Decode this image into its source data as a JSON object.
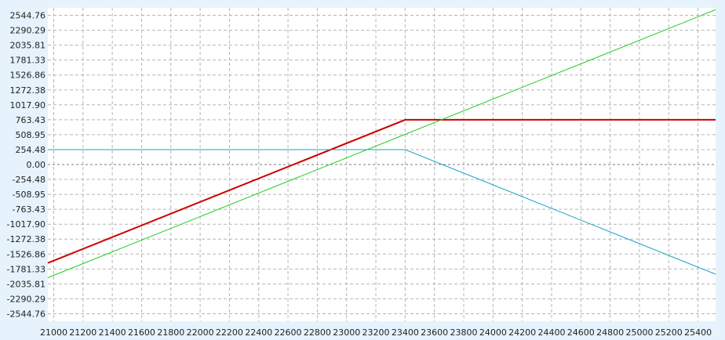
{
  "chart_data": {
    "type": "line",
    "title": "",
    "xlabel": "",
    "ylabel": "",
    "xlim": [
      20960,
      25520
    ],
    "ylim": [
      -2672,
      2672
    ],
    "grid": true,
    "x_ticks": [
      21000,
      21200,
      21400,
      21600,
      21800,
      22000,
      22200,
      22400,
      22600,
      22800,
      23000,
      23200,
      23400,
      23600,
      23800,
      24000,
      24200,
      24400,
      24600,
      24800,
      25000,
      25200,
      25400
    ],
    "x_tick_labels": [
      "21000",
      "21200",
      "21400",
      "21600",
      "21800",
      "22000",
      "22200",
      "22400",
      "22600",
      "22800",
      "23000",
      "23200",
      "23400",
      "23600",
      "23800",
      "24000",
      "24200",
      "24400",
      "24600",
      "24800",
      "25000",
      "25200",
      "25400"
    ],
    "y_ticks": [
      2544.76,
      2290.29,
      2035.81,
      1781.33,
      1526.86,
      1272.38,
      1017.9,
      763.43,
      508.95,
      254.48,
      0,
      -254.48,
      -508.95,
      -763.43,
      -1017.9,
      -1272.38,
      -1526.86,
      -1781.33,
      -2035.81,
      -2290.29,
      -2544.76
    ],
    "y_tick_labels": [
      "2544.76",
      "2290.29",
      "2035.81",
      "1781.33",
      "1526.86",
      "1272.38",
      "1017.90",
      "763.43",
      "508.95",
      "254.48",
      "0.00",
      "-254.48",
      "-508.95",
      "-763.43",
      "-1017.90",
      "-1272.38",
      "-1526.86",
      "-1781.33",
      "-2035.81",
      "-2290.29",
      "-2544.76"
    ],
    "series": [
      {
        "color": "#cc0000",
        "stroke_width": 2,
        "points": [
          [
            20960,
            -1680
          ],
          [
            23400,
            763.43
          ],
          [
            25520,
            763.43
          ]
        ]
      },
      {
        "color": "#22cc22",
        "stroke_width": 1,
        "points": [
          [
            20960,
            -1930
          ],
          [
            25520,
            2640
          ]
        ]
      },
      {
        "color": "#1aa3c8",
        "stroke_width": 1,
        "points": [
          [
            20960,
            254.48
          ],
          [
            23400,
            254.48
          ],
          [
            25520,
            -1870
          ]
        ]
      }
    ]
  }
}
